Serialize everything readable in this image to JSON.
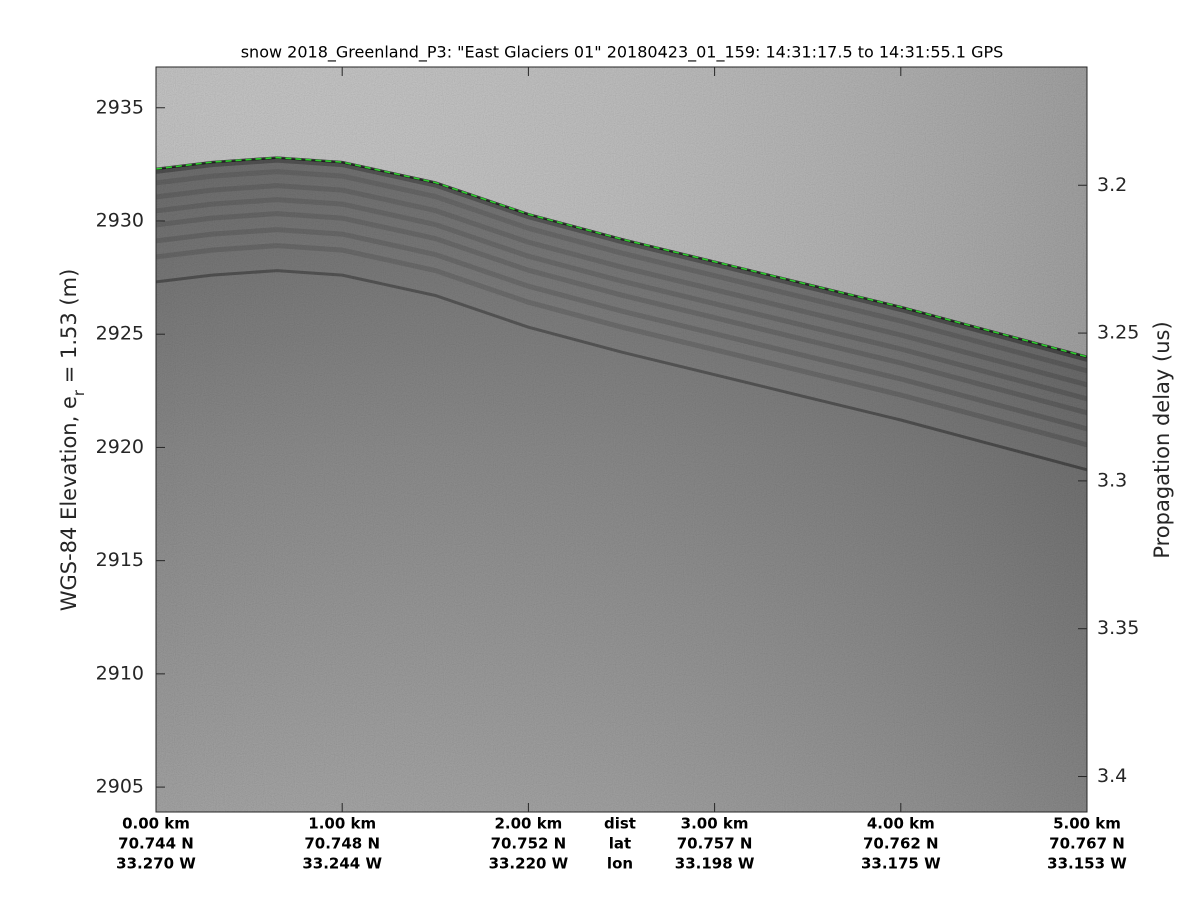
{
  "chart_data": {
    "type": "echogram",
    "title": "snow 2018_Greenland_P3: \"East Glaciers 01\"  20180423_01_159: 14:31:17.5 to 14:31:55.1 GPS",
    "ylabel_parts": [
      "WGS-84 Elevation, e",
      "r",
      " = 1.53 (m)"
    ],
    "y2label": "Propagation delay (us)",
    "row_labels": [
      "dist",
      "lat",
      "lon"
    ],
    "xlim": [
      0,
      5
    ],
    "xticks": [
      {
        "value": 0,
        "label": "0.00 km"
      },
      {
        "value": 1,
        "label": "1.00 km"
      },
      {
        "value": 2,
        "label": "2.00 km"
      },
      {
        "value": 3,
        "label": "3.00 km"
      },
      {
        "value": 4,
        "label": "4.00 km"
      },
      {
        "value": 5,
        "label": "5.00 km"
      }
    ],
    "lat_labels": [
      "70.744 N",
      "70.748 N",
      "70.752 N",
      "70.757 N",
      "70.762 N",
      "70.767 N"
    ],
    "lon_labels": [
      "33.270 W",
      "33.244 W",
      "33.220 W",
      "33.198 W",
      "33.175 W",
      "33.153 W"
    ],
    "ylim": [
      2903.9,
      2936.8
    ],
    "yticks": [
      2905,
      2910,
      2915,
      2920,
      2925,
      2930,
      2935
    ],
    "y2lim": [
      3.412,
      3.16
    ],
    "y2ticks": [
      3.2,
      3.25,
      3.3,
      3.35,
      3.4
    ],
    "series": [
      {
        "name": "surface",
        "color": "#2ecc2e",
        "x": [
          0,
          0.3,
          0.65,
          1.0,
          1.5,
          2.0,
          2.5,
          3.0,
          3.5,
          4.0,
          4.5,
          5.0
        ],
        "values": [
          2932.3,
          2932.6,
          2932.8,
          2932.6,
          2931.7,
          2930.3,
          2929.2,
          2928.2,
          2927.2,
          2926.2,
          2925.1,
          2924.0
        ]
      }
    ]
  }
}
